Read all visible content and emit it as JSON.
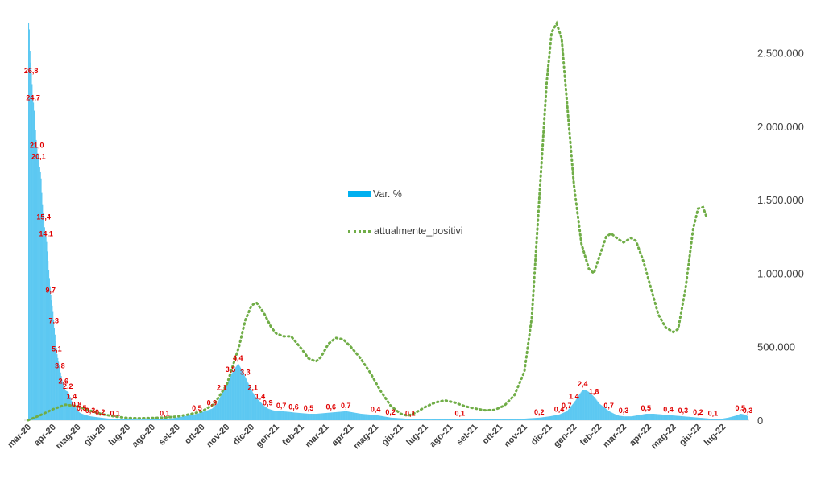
{
  "chart_data": {
    "type": "bar+line",
    "legend": {
      "position": "center",
      "items": [
        {
          "label": "Var. %",
          "kind": "bar",
          "color": "#00b0f0"
        },
        {
          "label": "attualmente_positivi",
          "kind": "dotted-line",
          "color": "#70ad47"
        }
      ]
    },
    "x_ticks": [
      "mar-20",
      "apr-20",
      "mag-20",
      "giu-20",
      "lug-20",
      "ago-20",
      "set-20",
      "ott-20",
      "nov-20",
      "dic-20",
      "gen-21",
      "feb-21",
      "mar-21",
      "apr-21",
      "mag-21",
      "giu-21",
      "lug-21",
      "ago-21",
      "set-21",
      "ott-21",
      "nov-21",
      "dic-21",
      "gen-22",
      "feb-22",
      "mar-22",
      "apr-22",
      "mag-22",
      "giu-22",
      "lug-22"
    ],
    "x_range": [
      0,
      29
    ],
    "secondary_y": {
      "ticks": [
        "0",
        "500.000",
        "1.000.000",
        "1.500.000",
        "2.000.000",
        "2.500.000"
      ],
      "tick_values": [
        0,
        500000,
        1000000,
        1500000,
        2000000,
        2500000
      ],
      "range": [
        0,
        2750000
      ],
      "side": "right"
    },
    "primary_y": {
      "range": [
        0,
        31.5
      ],
      "visible": false
    },
    "bar_series": {
      "name": "Var. %",
      "points": [
        [
          0.02,
          31.0
        ],
        [
          0.05,
          29.0
        ],
        [
          0.08,
          28.0
        ],
        [
          0.12,
          26.8
        ],
        [
          0.18,
          25.0
        ],
        [
          0.2,
          24.7
        ],
        [
          0.25,
          23.5
        ],
        [
          0.3,
          22.0
        ],
        [
          0.35,
          21.0
        ],
        [
          0.42,
          20.1
        ],
        [
          0.5,
          19.0
        ],
        [
          0.55,
          17.0
        ],
        [
          0.62,
          15.4
        ],
        [
          0.68,
          14.5
        ],
        [
          0.72,
          14.1
        ],
        [
          0.8,
          12.0
        ],
        [
          0.9,
          9.7
        ],
        [
          0.98,
          8.5
        ],
        [
          1.03,
          7.3
        ],
        [
          1.1,
          6.0
        ],
        [
          1.15,
          5.1
        ],
        [
          1.22,
          4.4
        ],
        [
          1.28,
          3.8
        ],
        [
          1.35,
          3.1
        ],
        [
          1.42,
          2.6
        ],
        [
          1.5,
          2.3
        ],
        [
          1.6,
          2.2
        ],
        [
          1.68,
          1.8
        ],
        [
          1.75,
          1.4
        ],
        [
          1.85,
          1.1
        ],
        [
          1.95,
          0.8
        ],
        [
          2.05,
          0.6
        ],
        [
          2.15,
          0.5
        ],
        [
          2.3,
          0.4
        ],
        [
          2.5,
          0.3
        ],
        [
          2.7,
          0.25
        ],
        [
          2.9,
          0.2
        ],
        [
          3.1,
          0.15
        ],
        [
          3.3,
          0.12
        ],
        [
          3.5,
          0.1
        ],
        [
          3.7,
          0.08
        ],
        [
          4.0,
          0.06
        ],
        [
          4.5,
          0.05
        ],
        [
          5.0,
          0.06
        ],
        [
          5.5,
          0.1
        ],
        [
          5.8,
          0.15
        ],
        [
          6.1,
          0.25
        ],
        [
          6.4,
          0.35
        ],
        [
          6.8,
          0.5
        ],
        [
          7.1,
          0.7
        ],
        [
          7.4,
          0.9
        ],
        [
          7.6,
          1.3
        ],
        [
          7.8,
          2.1
        ],
        [
          8.0,
          2.8
        ],
        [
          8.15,
          3.5
        ],
        [
          8.3,
          4.0
        ],
        [
          8.45,
          4.4
        ],
        [
          8.6,
          3.9
        ],
        [
          8.75,
          3.3
        ],
        [
          8.9,
          2.7
        ],
        [
          9.05,
          2.1
        ],
        [
          9.2,
          1.7
        ],
        [
          9.35,
          1.4
        ],
        [
          9.5,
          1.1
        ],
        [
          9.65,
          0.9
        ],
        [
          9.8,
          0.8
        ],
        [
          10.0,
          0.7
        ],
        [
          10.2,
          0.7
        ],
        [
          10.5,
          0.65
        ],
        [
          10.7,
          0.6
        ],
        [
          11.0,
          0.55
        ],
        [
          11.3,
          0.5
        ],
        [
          11.6,
          0.5
        ],
        [
          11.9,
          0.55
        ],
        [
          12.2,
          0.6
        ],
        [
          12.5,
          0.65
        ],
        [
          12.8,
          0.7
        ],
        [
          13.1,
          0.6
        ],
        [
          13.4,
          0.5
        ],
        [
          13.7,
          0.45
        ],
        [
          14.0,
          0.4
        ],
        [
          14.3,
          0.3
        ],
        [
          14.6,
          0.2
        ],
        [
          15.0,
          0.15
        ],
        [
          15.4,
          0.1
        ],
        [
          15.8,
          0.08
        ],
        [
          16.2,
          0.06
        ],
        [
          16.6,
          0.07
        ],
        [
          17.0,
          0.09
        ],
        [
          17.4,
          0.1
        ],
        [
          17.8,
          0.12
        ],
        [
          18.2,
          0.1
        ],
        [
          18.6,
          0.08
        ],
        [
          19.0,
          0.07
        ],
        [
          19.4,
          0.08
        ],
        [
          19.8,
          0.1
        ],
        [
          20.2,
          0.15
        ],
        [
          20.6,
          0.2
        ],
        [
          21.0,
          0.3
        ],
        [
          21.4,
          0.45
        ],
        [
          21.7,
          0.7
        ],
        [
          22.0,
          1.4
        ],
        [
          22.2,
          2.0
        ],
        [
          22.35,
          2.4
        ],
        [
          22.5,
          2.3
        ],
        [
          22.65,
          2.1
        ],
        [
          22.8,
          1.8
        ],
        [
          23.0,
          1.3
        ],
        [
          23.2,
          1.0
        ],
        [
          23.4,
          0.7
        ],
        [
          23.6,
          0.5
        ],
        [
          23.8,
          0.35
        ],
        [
          24.0,
          0.3
        ],
        [
          24.3,
          0.3
        ],
        [
          24.6,
          0.4
        ],
        [
          24.9,
          0.5
        ],
        [
          25.2,
          0.5
        ],
        [
          25.5,
          0.45
        ],
        [
          25.8,
          0.4
        ],
        [
          26.1,
          0.35
        ],
        [
          26.4,
          0.3
        ],
        [
          26.7,
          0.25
        ],
        [
          27.0,
          0.2
        ],
        [
          27.3,
          0.15
        ],
        [
          27.6,
          0.1
        ],
        [
          27.9,
          0.1
        ],
        [
          28.2,
          0.2
        ],
        [
          28.5,
          0.35
        ],
        [
          28.7,
          0.5
        ],
        [
          28.85,
          0.45
        ],
        [
          29.0,
          0.3
        ]
      ]
    },
    "line_series": {
      "name": "attualmente_positivi",
      "points": [
        [
          0,
          0
        ],
        [
          0.5,
          35000
        ],
        [
          1.0,
          75000
        ],
        [
          1.5,
          105000
        ],
        [
          2.0,
          95000
        ],
        [
          2.5,
          65000
        ],
        [
          3.0,
          40000
        ],
        [
          3.5,
          25000
        ],
        [
          4.0,
          15000
        ],
        [
          4.5,
          13000
        ],
        [
          5.0,
          15000
        ],
        [
          5.5,
          18000
        ],
        [
          6.0,
          25000
        ],
        [
          6.5,
          40000
        ],
        [
          7.0,
          60000
        ],
        [
          7.5,
          110000
        ],
        [
          8.0,
          240000
        ],
        [
          8.5,
          500000
        ],
        [
          8.75,
          680000
        ],
        [
          9.0,
          780000
        ],
        [
          9.2,
          800000
        ],
        [
          9.5,
          730000
        ],
        [
          9.8,
          630000
        ],
        [
          10.0,
          590000
        ],
        [
          10.3,
          570000
        ],
        [
          10.6,
          570000
        ],
        [
          11.0,
          490000
        ],
        [
          11.3,
          420000
        ],
        [
          11.6,
          400000
        ],
        [
          11.8,
          430000
        ],
        [
          12.1,
          520000
        ],
        [
          12.4,
          560000
        ],
        [
          12.7,
          550000
        ],
        [
          13.0,
          500000
        ],
        [
          13.4,
          420000
        ],
        [
          13.8,
          320000
        ],
        [
          14.2,
          200000
        ],
        [
          14.6,
          100000
        ],
        [
          15.0,
          45000
        ],
        [
          15.3,
          30000
        ],
        [
          15.6,
          50000
        ],
        [
          16.0,
          90000
        ],
        [
          16.4,
          120000
        ],
        [
          16.8,
          135000
        ],
        [
          17.2,
          120000
        ],
        [
          17.6,
          95000
        ],
        [
          18.0,
          80000
        ],
        [
          18.4,
          68000
        ],
        [
          18.8,
          70000
        ],
        [
          19.2,
          100000
        ],
        [
          19.6,
          170000
        ],
        [
          20.0,
          330000
        ],
        [
          20.3,
          700000
        ],
        [
          20.6,
          1500000
        ],
        [
          20.9,
          2300000
        ],
        [
          21.1,
          2640000
        ],
        [
          21.3,
          2700000
        ],
        [
          21.5,
          2600000
        ],
        [
          21.7,
          2200000
        ],
        [
          22.0,
          1600000
        ],
        [
          22.3,
          1200000
        ],
        [
          22.6,
          1030000
        ],
        [
          22.8,
          1000000
        ],
        [
          23.0,
          1100000
        ],
        [
          23.3,
          1250000
        ],
        [
          23.5,
          1270000
        ],
        [
          23.8,
          1230000
        ],
        [
          24.0,
          1210000
        ],
        [
          24.3,
          1240000
        ],
        [
          24.5,
          1220000
        ],
        [
          24.8,
          1080000
        ],
        [
          25.1,
          900000
        ],
        [
          25.4,
          720000
        ],
        [
          25.7,
          630000
        ],
        [
          26.0,
          600000
        ],
        [
          26.2,
          620000
        ],
        [
          26.5,
          900000
        ],
        [
          26.8,
          1300000
        ],
        [
          27.0,
          1440000
        ],
        [
          27.2,
          1450000
        ],
        [
          27.35,
          1380000
        ]
      ]
    },
    "data_labels": [
      {
        "text": "26,8",
        "x": 0.12,
        "y": 26.8
      },
      {
        "text": "24,7",
        "x": 0.2,
        "y": 24.7
      },
      {
        "text": "21,0",
        "x": 0.35,
        "y": 21.0
      },
      {
        "text": "20,1",
        "x": 0.42,
        "y": 20.1
      },
      {
        "text": "15,4",
        "x": 0.62,
        "y": 15.4
      },
      {
        "text": "14,1",
        "x": 0.72,
        "y": 14.1
      },
      {
        "text": "9,7",
        "x": 0.9,
        "y": 9.7
      },
      {
        "text": "7,3",
        "x": 1.03,
        "y": 7.3
      },
      {
        "text": "5,1",
        "x": 1.15,
        "y": 5.1
      },
      {
        "text": "3,8",
        "x": 1.28,
        "y": 3.8
      },
      {
        "text": "2,6",
        "x": 1.42,
        "y": 2.6
      },
      {
        "text": "2,2",
        "x": 1.6,
        "y": 2.2
      },
      {
        "text": "1,4",
        "x": 1.75,
        "y": 1.4
      },
      {
        "text": "0,8",
        "x": 1.95,
        "y": 0.8
      },
      {
        "text": "0,5",
        "x": 2.15,
        "y": 0.5
      },
      {
        "text": "0,3",
        "x": 2.5,
        "y": 0.3
      },
      {
        "text": "0,2",
        "x": 2.9,
        "y": 0.2
      },
      {
        "text": "0,1",
        "x": 3.5,
        "y": 0.1
      },
      {
        "text": "0,1",
        "x": 5.5,
        "y": 0.1
      },
      {
        "text": "0,5",
        "x": 6.8,
        "y": 0.5
      },
      {
        "text": "0,9",
        "x": 7.4,
        "y": 0.9
      },
      {
        "text": "2,1",
        "x": 7.8,
        "y": 2.1
      },
      {
        "text": "3,5",
        "x": 8.15,
        "y": 3.5
      },
      {
        "text": "4,4",
        "x": 8.45,
        "y": 4.4
      },
      {
        "text": "3,3",
        "x": 8.75,
        "y": 3.3
      },
      {
        "text": "2,1",
        "x": 9.05,
        "y": 2.1
      },
      {
        "text": "1,4",
        "x": 9.35,
        "y": 1.4
      },
      {
        "text": "0,9",
        "x": 9.65,
        "y": 0.9
      },
      {
        "text": "0,7",
        "x": 10.2,
        "y": 0.7
      },
      {
        "text": "0,6",
        "x": 10.7,
        "y": 0.6
      },
      {
        "text": "0,5",
        "x": 11.3,
        "y": 0.5
      },
      {
        "text": "0,6",
        "x": 12.2,
        "y": 0.6
      },
      {
        "text": "0,7",
        "x": 12.8,
        "y": 0.7
      },
      {
        "text": "0,4",
        "x": 14.0,
        "y": 0.4
      },
      {
        "text": "0,2",
        "x": 14.6,
        "y": 0.2
      },
      {
        "text": "0,1",
        "x": 15.4,
        "y": 0.1
      },
      {
        "text": "0,1",
        "x": 17.4,
        "y": 0.1
      },
      {
        "text": "0,2",
        "x": 20.6,
        "y": 0.2
      },
      {
        "text": "0,4",
        "x": 21.4,
        "y": 0.4
      },
      {
        "text": "0,7",
        "x": 21.7,
        "y": 0.7
      },
      {
        "text": "1,4",
        "x": 22.0,
        "y": 1.4
      },
      {
        "text": "2,4",
        "x": 22.35,
        "y": 2.4
      },
      {
        "text": "1,8",
        "x": 22.8,
        "y": 1.8
      },
      {
        "text": "0,7",
        "x": 23.4,
        "y": 0.7
      },
      {
        "text": "0,3",
        "x": 24.0,
        "y": 0.3
      },
      {
        "text": "0,5",
        "x": 24.9,
        "y": 0.5
      },
      {
        "text": "0,4",
        "x": 25.8,
        "y": 0.4
      },
      {
        "text": "0,3",
        "x": 26.4,
        "y": 0.3
      },
      {
        "text": "0,2",
        "x": 27.0,
        "y": 0.2
      },
      {
        "text": "0,1",
        "x": 27.6,
        "y": 0.1
      },
      {
        "text": "0,5",
        "x": 28.7,
        "y": 0.5
      },
      {
        "text": "0,3",
        "x": 29.0,
        "y": 0.3
      }
    ]
  }
}
